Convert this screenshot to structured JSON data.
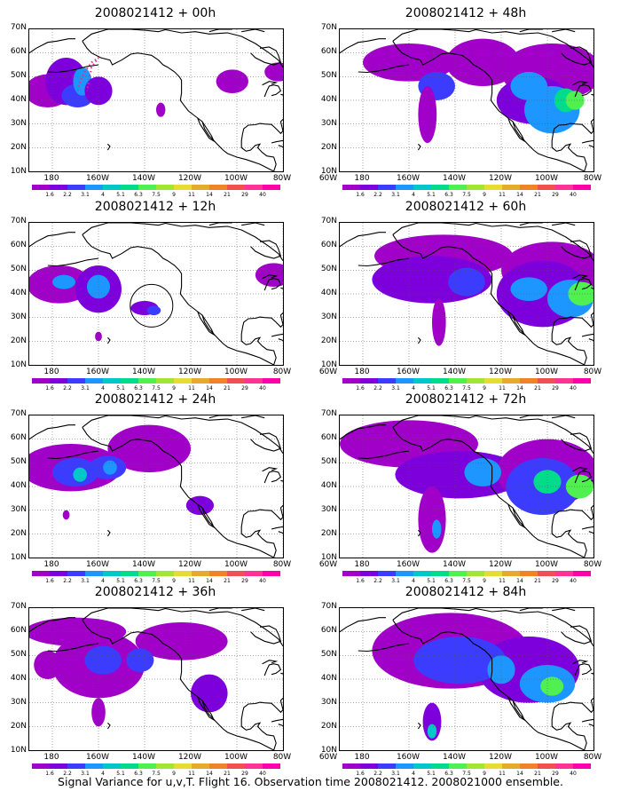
{
  "panels": [
    {
      "title": "2008021412 + 00h"
    },
    {
      "title": "2008021412 + 48h"
    },
    {
      "title": "2008021412 + 12h"
    },
    {
      "title": "2008021412 + 60h"
    },
    {
      "title": "2008021412 + 24h"
    },
    {
      "title": "2008021412 + 72h"
    },
    {
      "title": "2008021412 + 36h"
    },
    {
      "title": "2008021412 + 84h"
    }
  ],
  "y_labels": [
    "70N",
    "60N",
    "50N",
    "40N",
    "30N",
    "20N",
    "10N"
  ],
  "x_labels": [
    "180",
    "160W",
    "140W",
    "120W",
    "100W",
    "80W",
    "60W"
  ],
  "colorbar_labels": [
    "1.6",
    "2.2",
    "3.1",
    "4",
    "5.1",
    "6.3",
    "7.5",
    "9",
    "11",
    "14",
    "21",
    "29",
    "40"
  ],
  "colorbar_colors": [
    "#a000c8",
    "#7d00dc",
    "#3c3cff",
    "#1e96ff",
    "#00c8c8",
    "#00dc8c",
    "#50f050",
    "#a0e632",
    "#e6dc32",
    "#e6aa2d",
    "#f08228",
    "#f05050",
    "#ff3296",
    "#ff00aa"
  ],
  "caption": "Signal Variance for u,v,T. Flight 16. Observation time 2008021412. 2008021000 ensemble."
}
